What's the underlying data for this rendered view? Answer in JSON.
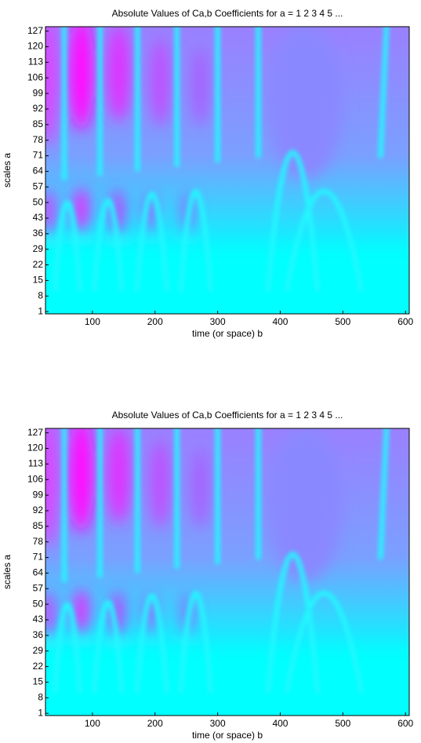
{
  "chart_data": [
    {
      "type": "heatmap",
      "title": "Absolute Values of Ca,b Coefficients for a =  1 2 3 4 5 ...",
      "xlabel": "time (or space) b",
      "ylabel": "scales a",
      "xlim": [
        25,
        606
      ],
      "xticks": [
        100,
        200,
        300,
        400,
        500,
        600
      ],
      "ylim": [
        0,
        129
      ],
      "yticks": [
        1,
        8,
        15,
        22,
        29,
        36,
        43,
        50,
        57,
        64,
        71,
        78,
        85,
        92,
        99,
        106,
        113,
        120,
        127
      ]
    },
    {
      "type": "heatmap",
      "title": "Absolute Values of Ca,b Coefficients for a =  1 2 3 4 5 ...",
      "xlabel": "time (or space) b",
      "ylabel": "scales a",
      "xlim": [
        25,
        606
      ],
      "xticks": [
        100,
        200,
        300,
        400,
        500,
        600
      ],
      "ylim": [
        0,
        129
      ],
      "yticks": [
        1,
        8,
        15,
        22,
        29,
        36,
        43,
        50,
        57,
        64,
        71,
        78,
        85,
        92,
        99,
        106,
        113,
        120,
        127
      ]
    }
  ]
}
